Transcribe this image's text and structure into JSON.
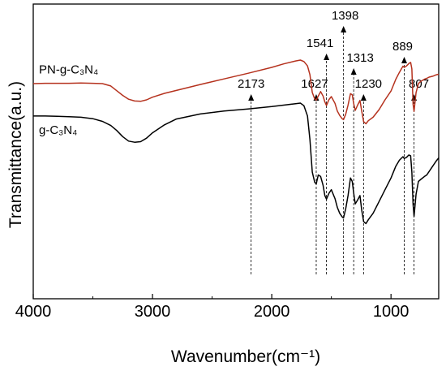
{
  "chart_data": {
    "type": "line",
    "title": "",
    "xlabel": "Wavenumber(cm⁻¹)",
    "ylabel": "Transmittance(a.u.)",
    "xlim": [
      4000,
      600
    ],
    "x_reversed": true,
    "y_ticks_shown": false,
    "x_ticks": [
      4000,
      3000,
      2000,
      1000
    ],
    "x_tick_labels": [
      "4000",
      "3000",
      "2000",
      "1000"
    ],
    "series": [
      {
        "name": "PN-g-C₃N₄",
        "color": "#b5321e",
        "x": [
          4000,
          3900,
          3800,
          3700,
          3600,
          3500,
          3420,
          3350,
          3300,
          3250,
          3200,
          3150,
          3100,
          3050,
          3000,
          2900,
          2800,
          2600,
          2400,
          2200,
          2000,
          1900,
          1800,
          1760,
          1730,
          1700,
          1680,
          1660,
          1640,
          1627,
          1610,
          1590,
          1570,
          1555,
          1541,
          1520,
          1500,
          1470,
          1450,
          1430,
          1410,
          1398,
          1380,
          1360,
          1340,
          1325,
          1313,
          1300,
          1280,
          1260,
          1245,
          1230,
          1210,
          1190,
          1150,
          1100,
          1050,
          1000,
          960,
          930,
          910,
          900,
          889,
          870,
          850,
          835,
          825,
          815,
          807,
          800,
          790,
          770,
          750,
          720,
          700,
          680,
          650,
          620,
          600
        ],
        "y": [
          0.73,
          0.731,
          0.731,
          0.731,
          0.732,
          0.731,
          0.73,
          0.722,
          0.706,
          0.69,
          0.677,
          0.671,
          0.67,
          0.675,
          0.684,
          0.697,
          0.707,
          0.727,
          0.746,
          0.765,
          0.785,
          0.797,
          0.807,
          0.81,
          0.805,
          0.79,
          0.76,
          0.7,
          0.678,
          0.674,
          0.688,
          0.703,
          0.688,
          0.668,
          0.656,
          0.676,
          0.686,
          0.663,
          0.637,
          0.622,
          0.611,
          0.608,
          0.626,
          0.657,
          0.696,
          0.692,
          0.663,
          0.639,
          0.657,
          0.673,
          0.636,
          0.601,
          0.594,
          0.604,
          0.616,
          0.642,
          0.675,
          0.705,
          0.745,
          0.768,
          0.782,
          0.789,
          0.785,
          0.79,
          0.798,
          0.802,
          0.78,
          0.66,
          0.636,
          0.662,
          0.7,
          0.73,
          0.738,
          0.745,
          0.748,
          0.752,
          0.755,
          0.76,
          0.762
        ]
      },
      {
        "name": "g-C₃N₄",
        "color": "#000000",
        "x": [
          4000,
          3900,
          3800,
          3700,
          3600,
          3500,
          3420,
          3350,
          3300,
          3250,
          3200,
          3150,
          3100,
          3050,
          3000,
          2900,
          2800,
          2600,
          2400,
          2200,
          2000,
          1900,
          1800,
          1760,
          1730,
          1700,
          1680,
          1660,
          1640,
          1627,
          1610,
          1590,
          1570,
          1555,
          1541,
          1520,
          1500,
          1470,
          1450,
          1430,
          1410,
          1398,
          1380,
          1360,
          1340,
          1325,
          1313,
          1300,
          1280,
          1260,
          1245,
          1230,
          1210,
          1190,
          1150,
          1100,
          1050,
          1000,
          960,
          930,
          910,
          900,
          889,
          870,
          850,
          835,
          825,
          815,
          807,
          800,
          790,
          770,
          750,
          720,
          700,
          680,
          650,
          620,
          600
        ],
        "y": [
          0.62,
          0.62,
          0.619,
          0.618,
          0.616,
          0.611,
          0.602,
          0.588,
          0.571,
          0.55,
          0.535,
          0.531,
          0.533,
          0.545,
          0.563,
          0.59,
          0.61,
          0.627,
          0.637,
          0.644,
          0.652,
          0.657,
          0.662,
          0.664,
          0.655,
          0.62,
          0.54,
          0.43,
          0.395,
          0.39,
          0.42,
          0.415,
          0.385,
          0.35,
          0.338,
          0.358,
          0.37,
          0.34,
          0.31,
          0.29,
          0.278,
          0.274,
          0.305,
          0.35,
          0.41,
          0.398,
          0.36,
          0.322,
          0.335,
          0.35,
          0.3,
          0.262,
          0.255,
          0.268,
          0.29,
          0.33,
          0.37,
          0.41,
          0.45,
          0.47,
          0.478,
          0.482,
          0.476,
          0.48,
          0.488,
          0.485,
          0.43,
          0.32,
          0.28,
          0.31,
          0.355,
          0.398,
          0.405,
          0.415,
          0.42,
          0.432,
          0.45,
          0.468,
          0.478
        ]
      }
    ],
    "annotations": [
      {
        "label": "2173",
        "x": 2173
      },
      {
        "label": "1627",
        "x": 1627
      },
      {
        "label": "1541",
        "x": 1541
      },
      {
        "label": "1398",
        "x": 1398
      },
      {
        "label": "1313",
        "x": 1313
      },
      {
        "label": "1230",
        "x": 1230
      },
      {
        "label": "889",
        "x": 889
      },
      {
        "label": "807",
        "x": 807
      }
    ]
  }
}
